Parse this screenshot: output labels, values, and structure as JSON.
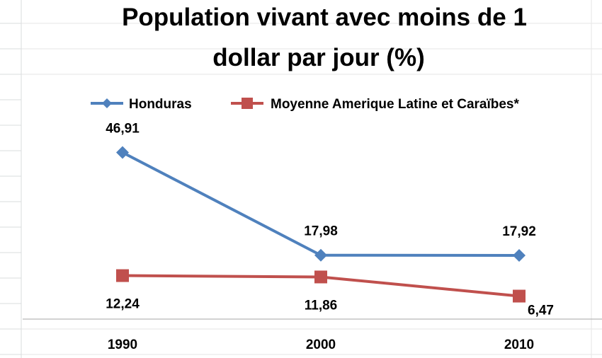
{
  "chart_data": {
    "type": "line",
    "title_lines": [
      "Population vivant avec moins de 1",
      "dollar par jour (%)"
    ],
    "categories": [
      "1990",
      "2000",
      "2010"
    ],
    "series": [
      {
        "name": "Honduras",
        "values": [
          46.91,
          17.98,
          17.92
        ],
        "labels": [
          "46,91",
          "17,98",
          "17,92"
        ],
        "color": "#4f81bd",
        "marker": "diamond",
        "label_position": "above"
      },
      {
        "name": "Moyenne Amerique Latine et Caraïbes*",
        "values": [
          12.24,
          11.86,
          6.47
        ],
        "labels": [
          "12,24",
          "11,86",
          "6,47"
        ],
        "color": "#c0504d",
        "marker": "square",
        "label_position": "below"
      }
    ],
    "xlabel": "",
    "ylabel": "",
    "ylim": [
      0,
      50
    ],
    "grid": false,
    "legend": "top"
  }
}
